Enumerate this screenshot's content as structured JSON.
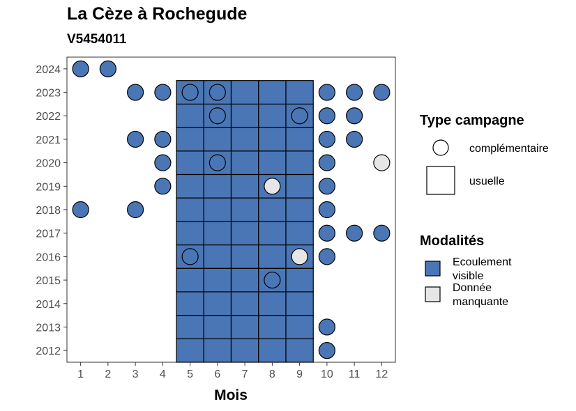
{
  "chart_data": {
    "type": "heatmap",
    "title": "La Cèze à Rochegude",
    "subtitle": "V5454011",
    "xlabel": "Mois",
    "ylabel": "",
    "x_ticks": [
      "1",
      "2",
      "3",
      "4",
      "5",
      "6",
      "7",
      "8",
      "9",
      "10",
      "11",
      "12"
    ],
    "y_ticks": [
      "2012",
      "2013",
      "2014",
      "2015",
      "2016",
      "2017",
      "2018",
      "2019",
      "2020",
      "2021",
      "2022",
      "2023",
      "2024"
    ],
    "xlim": [
      0.5,
      12.5
    ],
    "ylim": [
      2011.5,
      2024.5
    ],
    "grid": false,
    "legend_position": "right",
    "colors": {
      "ecoulement_visible": "#4A76B5",
      "donnee_manquante": "#E6E6E6"
    },
    "legend": {
      "shape_title": "Type campagne",
      "shape_entries": [
        {
          "key": "complementaire",
          "label": "complémentaire",
          "shape": "circle"
        },
        {
          "key": "usuelle",
          "label": "usuelle",
          "shape": "square"
        }
      ],
      "fill_title": "Modalités",
      "fill_entries": [
        {
          "key": "ecoulement_visible",
          "label_lines": [
            "Ecoulement",
            "visible"
          ]
        },
        {
          "key": "donnee_manquante",
          "label_lines": [
            "Donnée",
            "manquante"
          ]
        }
      ]
    },
    "usuelle": {
      "months": [
        5,
        6,
        7,
        8,
        9
      ],
      "years": [
        2012,
        2013,
        2014,
        2015,
        2016,
        2017,
        2018,
        2019,
        2020,
        2021,
        2022,
        2023
      ],
      "modalite": "ecoulement_visible"
    },
    "complementaire": [
      {
        "year": 2024,
        "month": 1,
        "modalite": "ecoulement_visible"
      },
      {
        "year": 2024,
        "month": 2,
        "modalite": "ecoulement_visible"
      },
      {
        "year": 2023,
        "month": 3,
        "modalite": "ecoulement_visible"
      },
      {
        "year": 2023,
        "month": 4,
        "modalite": "ecoulement_visible"
      },
      {
        "year": 2023,
        "month": 5,
        "modalite": "ecoulement_visible"
      },
      {
        "year": 2023,
        "month": 6,
        "modalite": "ecoulement_visible"
      },
      {
        "year": 2023,
        "month": 10,
        "modalite": "ecoulement_visible"
      },
      {
        "year": 2023,
        "month": 11,
        "modalite": "ecoulement_visible"
      },
      {
        "year": 2023,
        "month": 12,
        "modalite": "ecoulement_visible"
      },
      {
        "year": 2022,
        "month": 6,
        "modalite": "ecoulement_visible"
      },
      {
        "year": 2022,
        "month": 9,
        "modalite": "ecoulement_visible"
      },
      {
        "year": 2022,
        "month": 10,
        "modalite": "ecoulement_visible"
      },
      {
        "year": 2022,
        "month": 11,
        "modalite": "ecoulement_visible"
      },
      {
        "year": 2021,
        "month": 3,
        "modalite": "ecoulement_visible"
      },
      {
        "year": 2021,
        "month": 4,
        "modalite": "ecoulement_visible"
      },
      {
        "year": 2021,
        "month": 10,
        "modalite": "ecoulement_visible"
      },
      {
        "year": 2021,
        "month": 11,
        "modalite": "ecoulement_visible"
      },
      {
        "year": 2020,
        "month": 4,
        "modalite": "ecoulement_visible"
      },
      {
        "year": 2020,
        "month": 6,
        "modalite": "ecoulement_visible"
      },
      {
        "year": 2020,
        "month": 10,
        "modalite": "ecoulement_visible"
      },
      {
        "year": 2020,
        "month": 12,
        "modalite": "donnee_manquante"
      },
      {
        "year": 2019,
        "month": 4,
        "modalite": "ecoulement_visible"
      },
      {
        "year": 2019,
        "month": 8,
        "modalite": "donnee_manquante"
      },
      {
        "year": 2019,
        "month": 10,
        "modalite": "ecoulement_visible"
      },
      {
        "year": 2018,
        "month": 1,
        "modalite": "ecoulement_visible"
      },
      {
        "year": 2018,
        "month": 3,
        "modalite": "ecoulement_visible"
      },
      {
        "year": 2018,
        "month": 10,
        "modalite": "ecoulement_visible"
      },
      {
        "year": 2017,
        "month": 10,
        "modalite": "ecoulement_visible"
      },
      {
        "year": 2017,
        "month": 11,
        "modalite": "ecoulement_visible"
      },
      {
        "year": 2017,
        "month": 12,
        "modalite": "ecoulement_visible"
      },
      {
        "year": 2016,
        "month": 5,
        "modalite": "ecoulement_visible"
      },
      {
        "year": 2016,
        "month": 9,
        "modalite": "donnee_manquante"
      },
      {
        "year": 2016,
        "month": 10,
        "modalite": "ecoulement_visible"
      },
      {
        "year": 2015,
        "month": 8,
        "modalite": "ecoulement_visible"
      },
      {
        "year": 2013,
        "month": 10,
        "modalite": "ecoulement_visible"
      },
      {
        "year": 2012,
        "month": 10,
        "modalite": "ecoulement_visible"
      }
    ]
  }
}
